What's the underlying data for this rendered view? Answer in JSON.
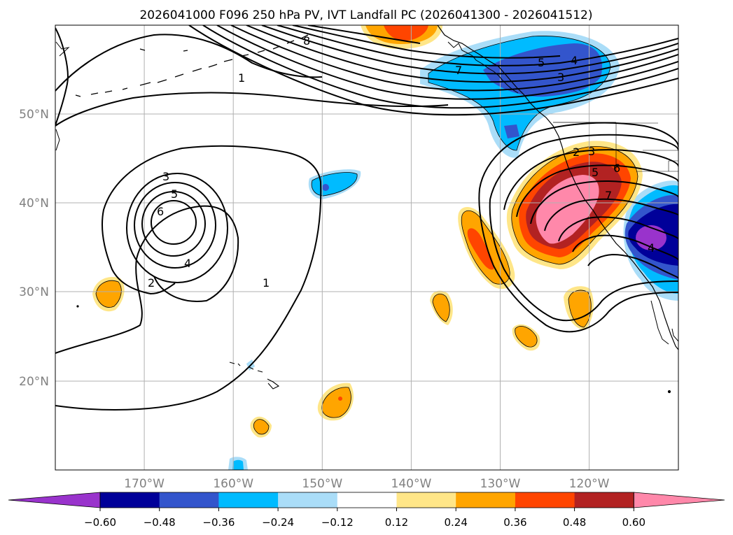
{
  "title": "2026041000 F096 250 hPa PV, IVT Landfall PC (2026041300 - 2026041512)",
  "map": {
    "lat_labels": [
      {
        "lat": 50,
        "label": "50°N"
      },
      {
        "lat": 40,
        "label": "40°N"
      },
      {
        "lat": 30,
        "label": "30°N"
      },
      {
        "lat": 20,
        "label": "20°N"
      }
    ],
    "lon_labels": [
      {
        "lon": -170,
        "label": "170°W"
      },
      {
        "lon": -160,
        "label": "160°W"
      },
      {
        "lon": -150,
        "label": "150°W"
      },
      {
        "lon": -140,
        "label": "140°W"
      },
      {
        "lon": -130,
        "label": "130°W"
      },
      {
        "lon": -120,
        "label": "120°W"
      }
    ],
    "label_color": "#808080",
    "gridline_color": "#b0b0b0"
  },
  "colorbar": {
    "tick_labels": [
      "−0.60",
      "−0.48",
      "−0.36",
      "−0.24",
      "−0.12",
      "0.12",
      "0.24",
      "0.36",
      "0.48",
      "0.60"
    ],
    "colors": [
      "#9933cc",
      "#000099",
      "#3355cc",
      "#00bbff",
      "#aaddf8",
      "#ffffff",
      "#ffe688",
      "#ffa500",
      "#ff4500",
      "#b22222",
      "#ff88aa"
    ]
  },
  "contour_labels": {
    "west_low": [
      "3",
      "5",
      "6",
      "4",
      "2",
      "1"
    ],
    "pacific_trough": [
      "1",
      "8"
    ],
    "coastal": [
      "7",
      "5",
      "4",
      "3",
      "2",
      "3",
      "5",
      "6",
      "7",
      "4"
    ]
  }
}
